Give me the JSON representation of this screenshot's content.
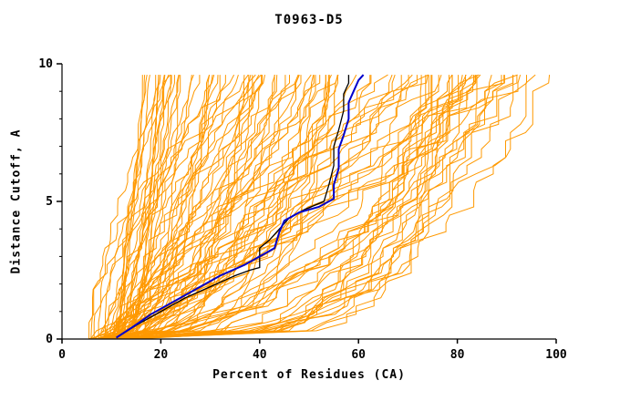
{
  "chart_data": {
    "type": "line",
    "title": "T0963-D5",
    "xlabel": "Percent of Residues (CA)",
    "ylabel": "Distance Cutoff, A",
    "xlim": [
      0,
      100
    ],
    "ylim": [
      0,
      10
    ],
    "xticks": [
      0,
      20,
      40,
      60,
      80,
      100
    ],
    "yticks": [
      0,
      5,
      10
    ],
    "y_minor_tick_step": 1,
    "grid": false,
    "legend": "none",
    "highlighted_series": [
      {
        "name": "reference-model-black",
        "color": "#000000",
        "width": 1.3,
        "points": [
          [
            11,
            0.05
          ],
          [
            15,
            0.5
          ],
          [
            20,
            1.0
          ],
          [
            25,
            1.5
          ],
          [
            30,
            1.9
          ],
          [
            35,
            2.3
          ],
          [
            38,
            2.5
          ],
          [
            40,
            2.6
          ],
          [
            40,
            3.3
          ],
          [
            42,
            3.6
          ],
          [
            44,
            4.0
          ],
          [
            46,
            4.4
          ],
          [
            49,
            4.7
          ],
          [
            53,
            5.0
          ],
          [
            54,
            5.6
          ],
          [
            55,
            6.3
          ],
          [
            55,
            7.0
          ],
          [
            56,
            7.6
          ],
          [
            57,
            8.3
          ],
          [
            57,
            8.9
          ],
          [
            58,
            9.3
          ],
          [
            58,
            9.6
          ]
        ]
      },
      {
        "name": "best-model-blue",
        "color": "#0000CC",
        "width": 2,
        "points": [
          [
            11,
            0.05
          ],
          [
            14,
            0.4
          ],
          [
            18,
            0.9
          ],
          [
            22,
            1.3
          ],
          [
            27,
            1.8
          ],
          [
            32,
            2.3
          ],
          [
            37,
            2.7
          ],
          [
            40,
            3.0
          ],
          [
            43,
            3.3
          ],
          [
            44,
            3.9
          ],
          [
            45,
            4.3
          ],
          [
            48,
            4.6
          ],
          [
            52,
            4.8
          ],
          [
            55,
            5.1
          ],
          [
            55,
            5.6
          ],
          [
            56,
            6.2
          ],
          [
            56,
            6.9
          ],
          [
            57,
            7.4
          ],
          [
            58,
            8.0
          ],
          [
            58,
            8.6
          ],
          [
            59,
            9.0
          ],
          [
            60,
            9.4
          ],
          [
            61,
            9.6
          ]
        ]
      }
    ],
    "ensemble": {
      "name": "predicted-model-curves",
      "description": "Many overlapping GDT curves for submitted models, drawn in orange; curves start at 5-14 percent at cutoff 0 and fan out to 16-100 percent near cutoff 9.6",
      "color": "#FF9900",
      "count": 110,
      "seed": 1337,
      "y_max": 9.6,
      "x_start_range": [
        5,
        14
      ],
      "x_end_range": [
        16,
        100
      ],
      "points_per_curve": 33
    }
  }
}
